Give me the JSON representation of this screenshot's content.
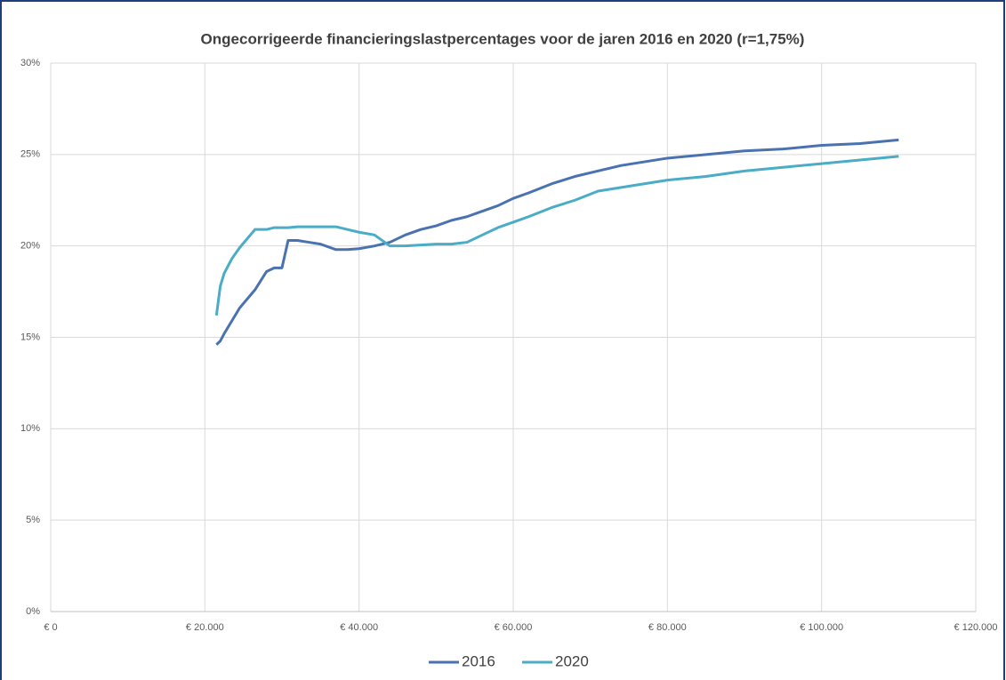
{
  "chart_data": {
    "type": "line",
    "title": "Ongecorrigeerde financieringslastpercentages voor de jaren 2016 en 2020 (r=1,75%)",
    "x": [
      21500,
      22000,
      22500,
      23500,
      24500,
      26500,
      28000,
      29000,
      30000,
      30800,
      32000,
      33500,
      35000,
      37000,
      38500,
      40000,
      42000,
      44000,
      46000,
      48000,
      50000,
      52000,
      54000,
      56000,
      58000,
      60000,
      62000,
      65000,
      68000,
      71000,
      74000,
      77000,
      80000,
      85000,
      90000,
      95000,
      100000,
      105000,
      110000
    ],
    "series": [
      {
        "name": "2016",
        "color": "#4a72b0",
        "values": [
          14.6,
          14.8,
          15.2,
          15.9,
          16.6,
          17.6,
          18.6,
          18.8,
          18.8,
          20.3,
          20.3,
          20.2,
          20.1,
          19.8,
          19.8,
          19.85,
          20.0,
          20.2,
          20.6,
          20.9,
          21.1,
          21.4,
          21.6,
          21.9,
          22.2,
          22.6,
          22.9,
          23.4,
          23.8,
          24.1,
          24.4,
          24.6,
          24.8,
          25.0,
          25.2,
          25.3,
          25.5,
          25.6,
          25.8
        ]
      },
      {
        "name": "2020",
        "color": "#4bacc6",
        "values": [
          16.2,
          17.8,
          18.5,
          19.3,
          19.9,
          20.9,
          20.9,
          21.0,
          21.0,
          21.0,
          21.05,
          21.05,
          21.05,
          21.05,
          20.9,
          20.75,
          20.6,
          20.0,
          20.0,
          20.05,
          20.1,
          20.1,
          20.2,
          20.6,
          21.0,
          21.3,
          21.6,
          22.1,
          22.5,
          23.0,
          23.2,
          23.4,
          23.6,
          23.8,
          24.1,
          24.3,
          24.5,
          24.7,
          24.9
        ]
      }
    ],
    "xlim": [
      0,
      120000
    ],
    "xticks": [
      {
        "value": 0,
        "label": "€ 0"
      },
      {
        "value": 20000,
        "label": "€ 20.000"
      },
      {
        "value": 40000,
        "label": "€ 40.000"
      },
      {
        "value": 60000,
        "label": "€ 60.000"
      },
      {
        "value": 80000,
        "label": "€ 80.000"
      },
      {
        "value": 100000,
        "label": "€ 100.000"
      },
      {
        "value": 120000,
        "label": "€ 120.000"
      }
    ],
    "ylim": [
      0,
      30
    ],
    "yticks": [
      {
        "value": 0,
        "label": "0%"
      },
      {
        "value": 5,
        "label": "5%"
      },
      {
        "value": 10,
        "label": "10%"
      },
      {
        "value": 15,
        "label": "15%"
      },
      {
        "value": 20,
        "label": "20%"
      },
      {
        "value": 25,
        "label": "25%"
      },
      {
        "value": 30,
        "label": "30%"
      }
    ],
    "grid": true,
    "legend": "bottom"
  }
}
